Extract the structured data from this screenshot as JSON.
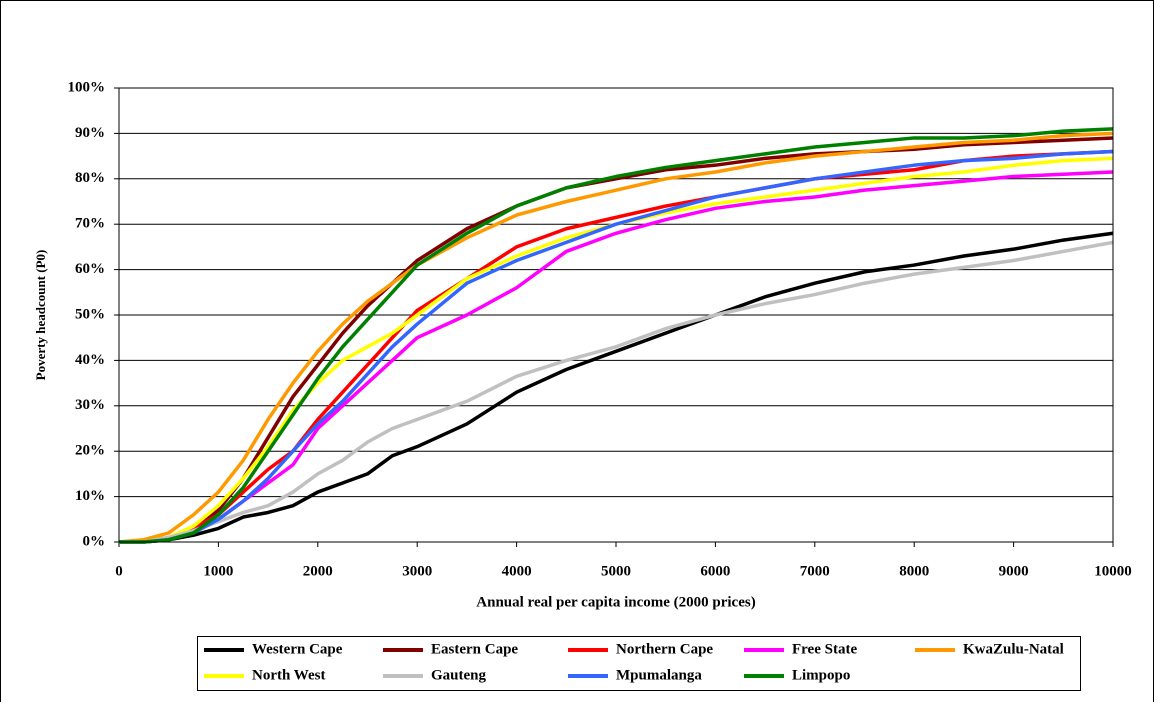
{
  "chart_data": {
    "type": "line",
    "xlabel": "Annual real per capita income (2000 prices)",
    "ylabel": "Poverty headcount (P0)",
    "x": [
      0,
      250,
      500,
      750,
      1000,
      1250,
      1500,
      1750,
      2000,
      2250,
      2500,
      2750,
      3000,
      3500,
      4000,
      4500,
      5000,
      5500,
      6000,
      6500,
      7000,
      7500,
      8000,
      8500,
      9000,
      9500,
      10000
    ],
    "xlim": [
      0,
      10000
    ],
    "xticks": [
      0,
      1000,
      2000,
      3000,
      4000,
      5000,
      6000,
      7000,
      8000,
      9000,
      10000
    ],
    "ylim": [
      0,
      100
    ],
    "yticks": [
      {
        "value": 0,
        "label": "0%"
      },
      {
        "value": 10,
        "label": "10%"
      },
      {
        "value": 20,
        "label": "20%"
      },
      {
        "value": 30,
        "label": "30%"
      },
      {
        "value": 40,
        "label": "40%"
      },
      {
        "value": 50,
        "label": "50%"
      },
      {
        "value": 60,
        "label": "60%"
      },
      {
        "value": 70,
        "label": "70%"
      },
      {
        "value": 80,
        "label": "80%"
      },
      {
        "value": 90,
        "label": "90%"
      },
      {
        "value": 100,
        "label": "100%"
      }
    ],
    "grid": true,
    "legend": "bottom",
    "series": [
      {
        "name": "Western Cape",
        "color": "#000000",
        "values": [
          0,
          0,
          0.5,
          1.5,
          3,
          5.5,
          6.5,
          8,
          11,
          13,
          15,
          19,
          21,
          26,
          33,
          38,
          42,
          46,
          50,
          54,
          57,
          59.5,
          61,
          63,
          64.5,
          66.5,
          68
        ]
      },
      {
        "name": "Eastern Cape",
        "color": "#800000",
        "values": [
          0,
          0,
          0.8,
          3,
          7,
          14,
          23,
          32,
          39,
          46,
          52,
          57,
          62,
          69,
          74,
          78,
          80,
          82,
          83,
          84.5,
          85.5,
          86,
          86.5,
          87.5,
          88,
          88.5,
          89
        ]
      },
      {
        "name": "Northern Cape",
        "color": "#ff0000",
        "values": [
          0,
          0,
          1,
          3,
          6,
          11,
          16,
          20,
          27,
          33,
          39,
          45,
          51,
          58,
          65,
          69,
          71.5,
          74,
          76,
          78,
          80,
          81,
          82,
          84,
          85,
          85.5,
          86
        ]
      },
      {
        "name": "Free State",
        "color": "#ff00ff",
        "values": [
          0,
          0,
          1,
          2.5,
          5,
          9,
          13,
          17,
          25,
          30,
          35,
          40,
          45,
          50,
          56,
          64,
          68,
          71,
          73.5,
          75,
          76,
          77.5,
          78.5,
          79.5,
          80.5,
          81,
          81.5
        ]
      },
      {
        "name": "KwaZulu-Natal",
        "color": "#ff9900",
        "values": [
          0,
          0.5,
          2,
          6,
          11,
          18,
          27,
          35,
          42,
          48,
          53,
          57,
          61,
          67,
          72,
          75,
          77.5,
          80,
          81.5,
          83.5,
          85,
          86,
          87,
          88,
          88.5,
          89.5,
          90
        ]
      },
      {
        "name": "North West",
        "color": "#ffff00",
        "values": [
          0,
          0,
          1,
          3.5,
          8,
          14,
          21,
          29,
          35,
          40,
          43,
          46,
          50,
          58,
          63,
          67,
          70,
          72.5,
          74.5,
          76,
          77.5,
          79,
          80.5,
          81.5,
          83,
          84,
          84.5
        ]
      },
      {
        "name": "Gauteng",
        "color": "#c0c0c0",
        "values": [
          0,
          0,
          1,
          2.5,
          4.5,
          6.5,
          8,
          11,
          15,
          18,
          22,
          25,
          27,
          31,
          36.5,
          40,
          43,
          47,
          50,
          52.5,
          54.5,
          57,
          59,
          60.5,
          62,
          64,
          66
        ]
      },
      {
        "name": "Mpumalanga",
        "color": "#3366ff",
        "values": [
          0,
          0,
          0.5,
          2,
          5,
          9,
          14,
          20,
          26,
          31,
          37,
          43,
          48,
          57,
          62,
          66,
          70,
          73,
          76,
          78,
          80,
          81.5,
          83,
          84,
          84.5,
          85.5,
          86
        ]
      },
      {
        "name": "Limpopo",
        "color": "#008000",
        "values": [
          0,
          0,
          0.5,
          2,
          6,
          12,
          20,
          28,
          36,
          43,
          49,
          55,
          61,
          68,
          74,
          78,
          80.5,
          82.5,
          84,
          85.5,
          87,
          88,
          89,
          89,
          89.5,
          90.5,
          91
        ]
      }
    ]
  }
}
